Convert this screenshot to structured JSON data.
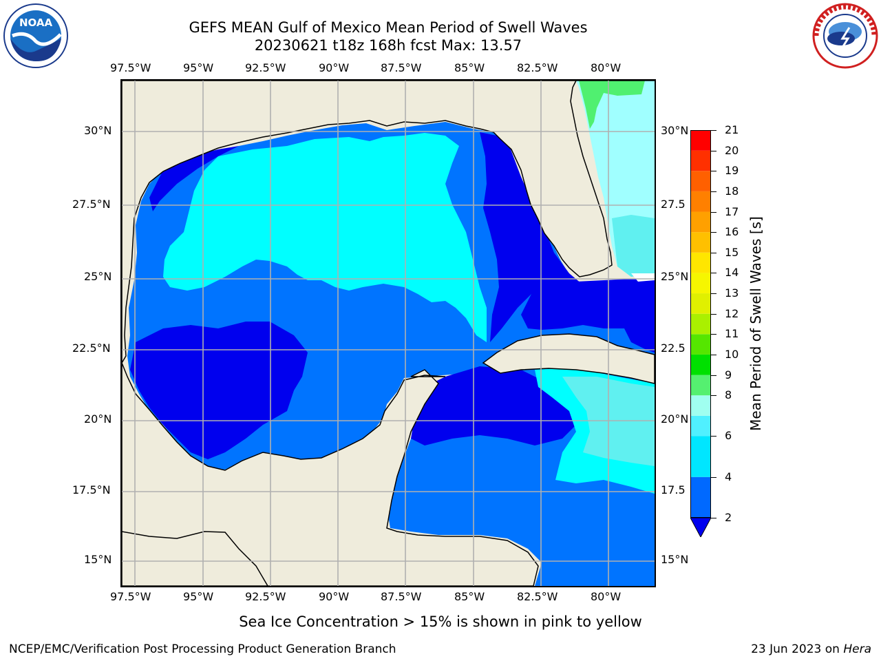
{
  "title_line1": "GEFS MEAN Gulf of Mexico Mean Period of Swell Waves",
  "title_line2": "20230621 t18z 168h fcst   Max: 13.57",
  "lon_ticks": [
    "97.5°W",
    "95°W",
    "92.5°W",
    "90°W",
    "87.5°W",
    "85°W",
    "82.5°W",
    "80°W"
  ],
  "lat_ticks_left": [
    "30°N",
    "27.5°N",
    "25°N",
    "22.5°N",
    "20°N",
    "17.5°N",
    "15°N"
  ],
  "lat_ticks_right": [
    "30°N",
    "27.5",
    "25°N",
    "22.5",
    "20°N",
    "17.5",
    "15°N"
  ],
  "colorbar": {
    "label": "Mean Period of Swell Waves [s]",
    "ticks": [
      "21",
      "20",
      "19",
      "18",
      "17",
      "16",
      "15",
      "14",
      "13",
      "12",
      "11",
      "10",
      "9",
      "8",
      "7",
      "6",
      "5",
      "4",
      "3",
      "2"
    ],
    "tick_labels_shown": [
      "21",
      "20",
      "19",
      "18",
      "17",
      "16",
      "15",
      "14",
      "13",
      "12",
      "11",
      "10",
      "9",
      "8",
      "6",
      "4",
      "2"
    ],
    "colors_bottom_to_top": [
      "#0069ff",
      "#00e6ff",
      "#50f0ff",
      "#a0fff0",
      "#55f070",
      "#00e000",
      "#55e600",
      "#aaf000",
      "#e0f000",
      "#f6f600",
      "#ffe600",
      "#ffc000",
      "#ffa000",
      "#ff8000",
      "#ff6000",
      "#ff3000",
      "#ff0000"
    ],
    "under_color": "#0000ee"
  },
  "map_colors": {
    "land": "#efecdc",
    "level_2_4": "#0074ff",
    "level_below_2": "#0000ee",
    "level_4_6": "#00ffff",
    "level_6_8": "#60f0f0",
    "level_8_9": "#a0ffff",
    "level_9_10": "#50f070",
    "level_10_11": "#10e010",
    "level_11_12": "#60e800",
    "level_12_13": "#a0f000",
    "level_13_14": "#d8f000",
    "grid": "#b0b0b0"
  },
  "note": "Sea Ice Concentration > 15% is shown in pink to yellow",
  "footer_left": "NCEP/EMC/Verification Post Processing Product Generation Branch",
  "footer_right_prefix": "23 Jun 2023 on ",
  "footer_right_host": "Hera",
  "logos": {
    "left": "noaa-logo",
    "right": "nws-logo",
    "left_text": "NOAA"
  }
}
